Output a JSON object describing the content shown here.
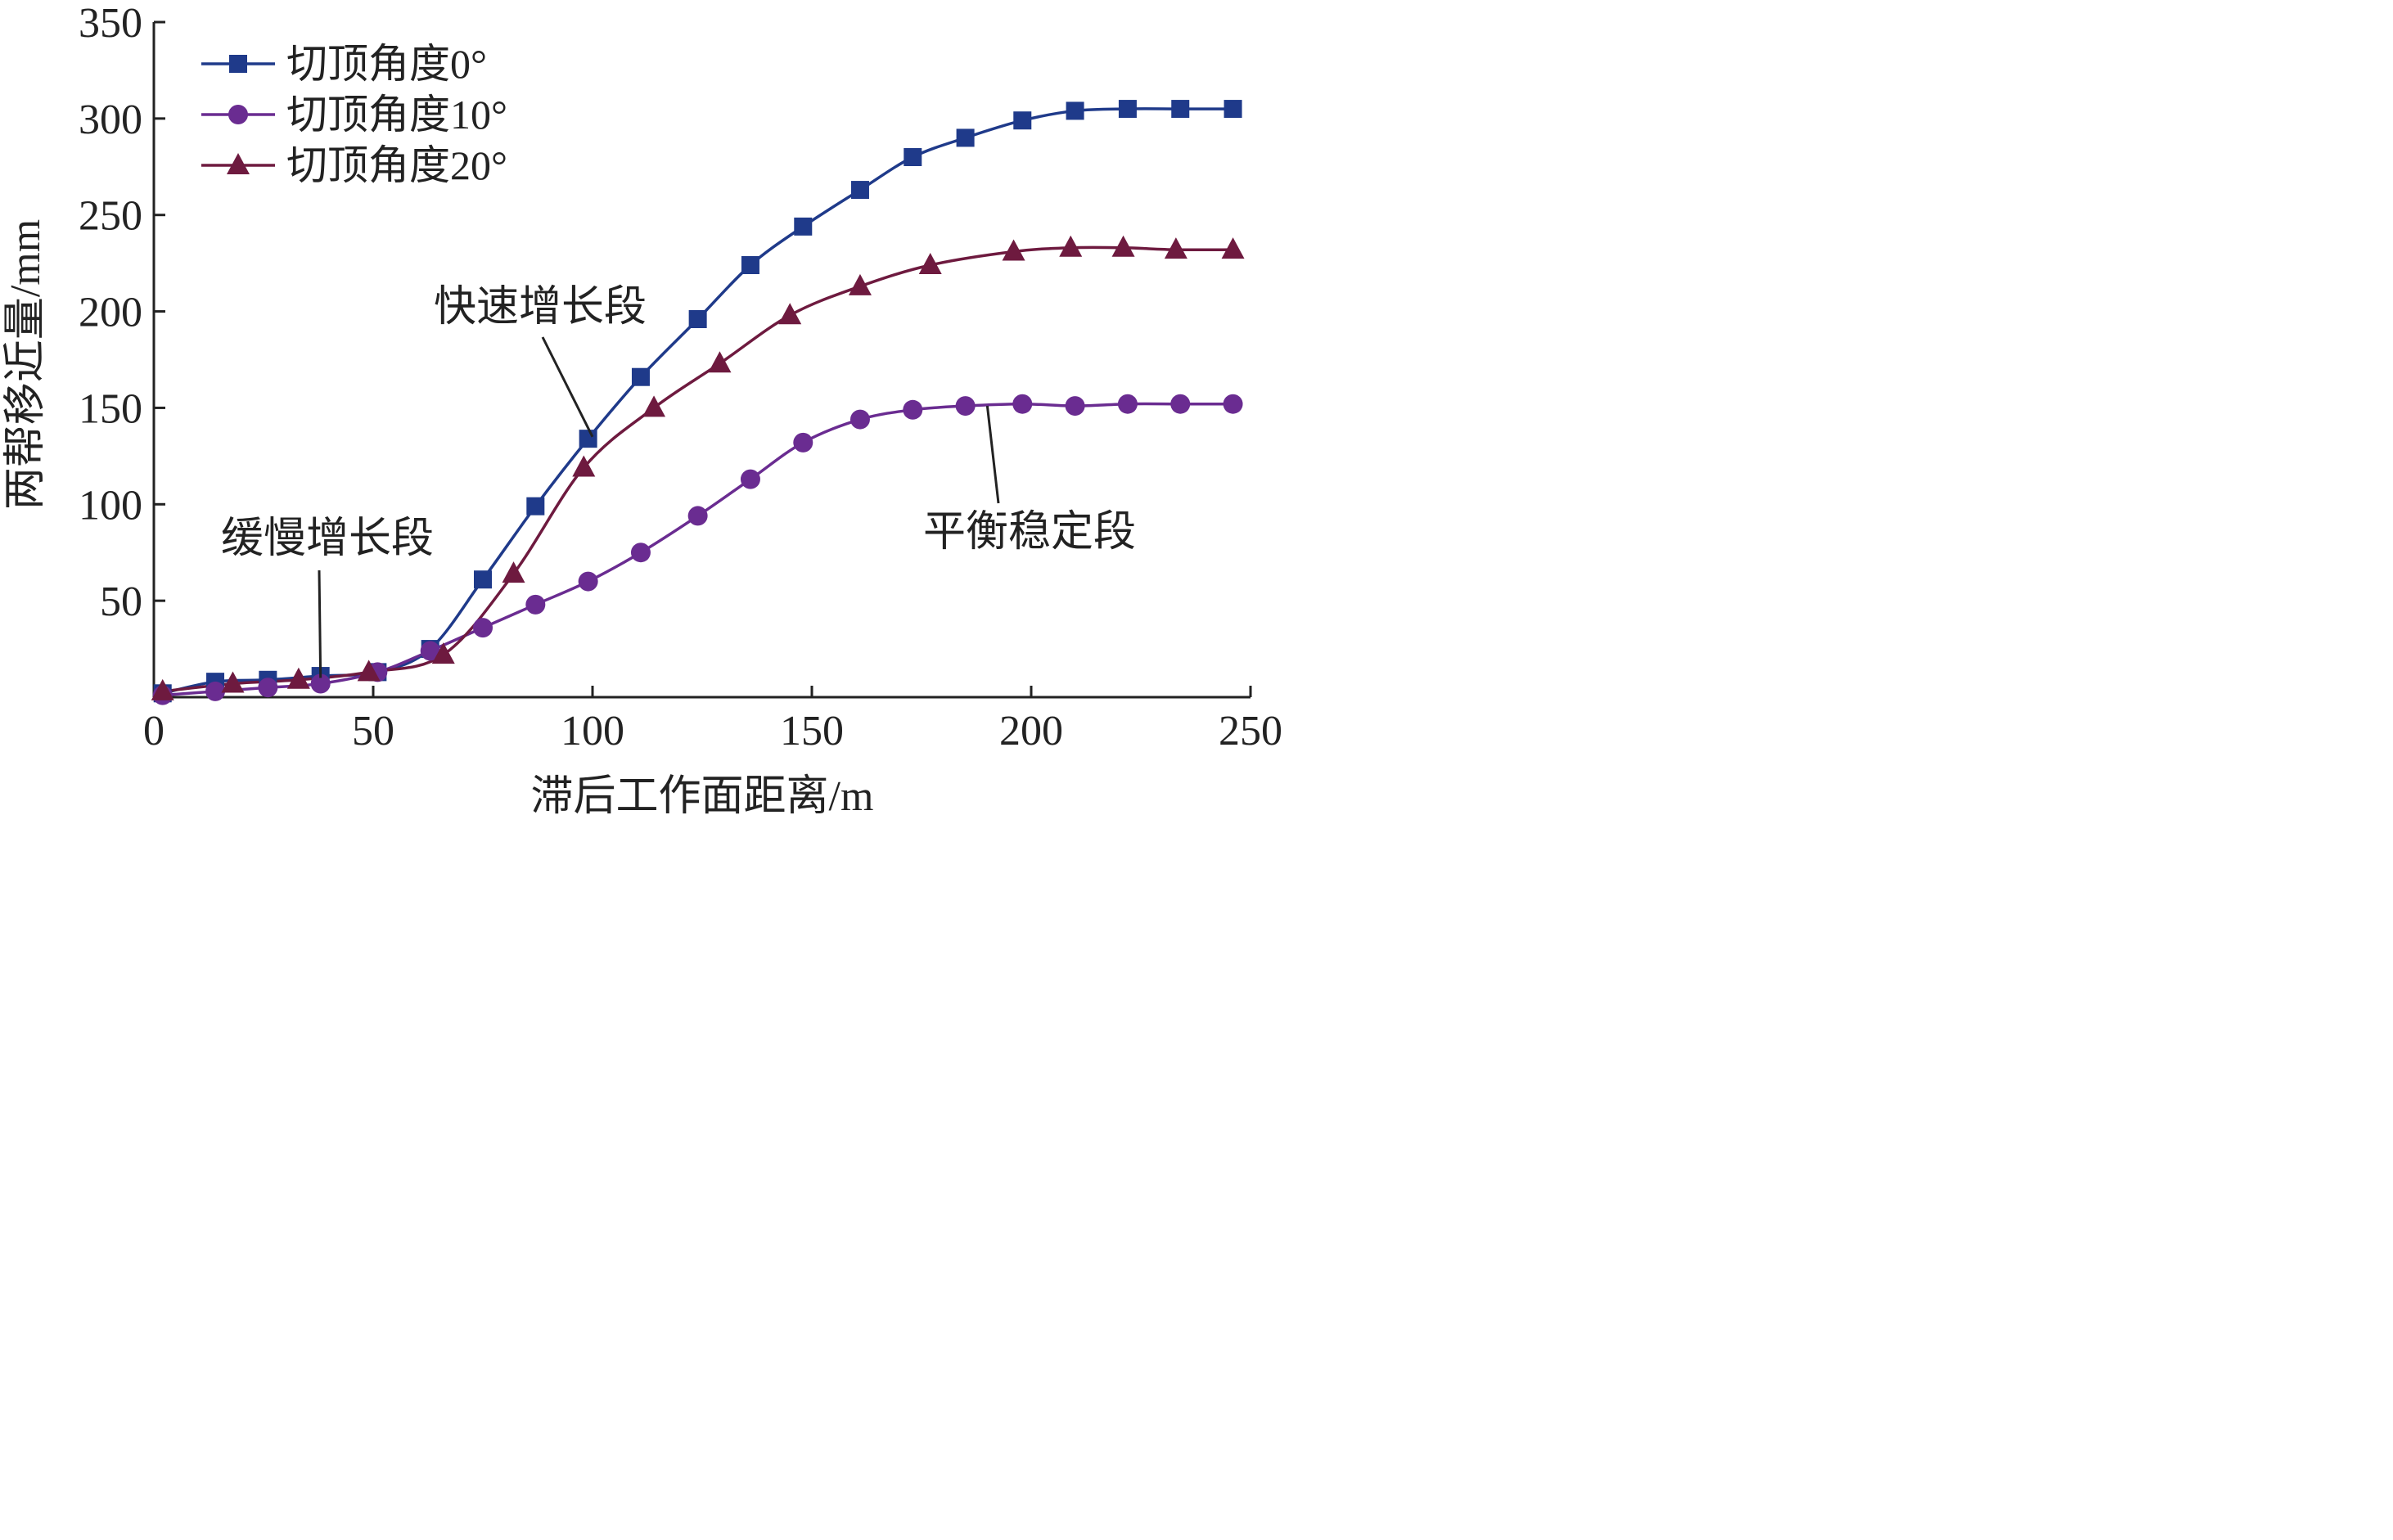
{
  "chart_data": {
    "type": "line",
    "xlabel": "滞后工作面距离/m",
    "ylabel": "两帮移近量/mm",
    "xlim": [
      0,
      250
    ],
    "ylim": [
      0,
      350
    ],
    "x_ticks": [
      0,
      50,
      100,
      150,
      200,
      250
    ],
    "y_ticks": [
      50,
      100,
      150,
      200,
      250,
      300,
      350
    ],
    "grid": false,
    "legend_position": "top-left",
    "series": [
      {
        "name": "切顶角度0°",
        "color": "#1f3a8a",
        "marker": "square",
        "x": [
          2,
          14,
          26,
          38,
          51,
          63,
          75,
          87,
          99,
          111,
          124,
          136,
          148,
          161,
          173,
          185,
          198,
          210,
          222,
          234,
          246
        ],
        "y": [
          2,
          8,
          9,
          11,
          13,
          25,
          61,
          99,
          134,
          166,
          196,
          224,
          244,
          263,
          280,
          290,
          299,
          304,
          305,
          305,
          305
        ]
      },
      {
        "name": "切顶角度10°",
        "color": "#6a2c91",
        "marker": "circle",
        "x": [
          2,
          14,
          26,
          38,
          51,
          63,
          75,
          87,
          99,
          111,
          124,
          136,
          148,
          161,
          173,
          185,
          198,
          210,
          222,
          234,
          246
        ],
        "y": [
          1,
          3,
          5,
          7,
          13,
          24,
          36,
          48,
          60,
          75,
          94,
          113,
          132,
          144,
          149,
          151,
          152,
          151,
          152,
          152,
          152
        ]
      },
      {
        "name": "切顶角度20°",
        "color": "#6e1a3f",
        "marker": "triangle",
        "x": [
          2,
          18,
          33,
          49,
          66,
          82,
          98,
          114,
          129,
          145,
          161,
          177,
          196,
          209,
          221,
          233,
          246
        ],
        "y": [
          3,
          7,
          9,
          13,
          22,
          64,
          119,
          150,
          173,
          198,
          213,
          224,
          231,
          233,
          233,
          232,
          232
        ]
      }
    ],
    "annotations": [
      {
        "text": "缓慢增长段",
        "at": [
          38,
          10
        ]
      },
      {
        "text": "快速增长段",
        "at": [
          100,
          135
        ]
      },
      {
        "text": "平衡稳定段",
        "at": [
          190,
          151
        ]
      }
    ]
  }
}
